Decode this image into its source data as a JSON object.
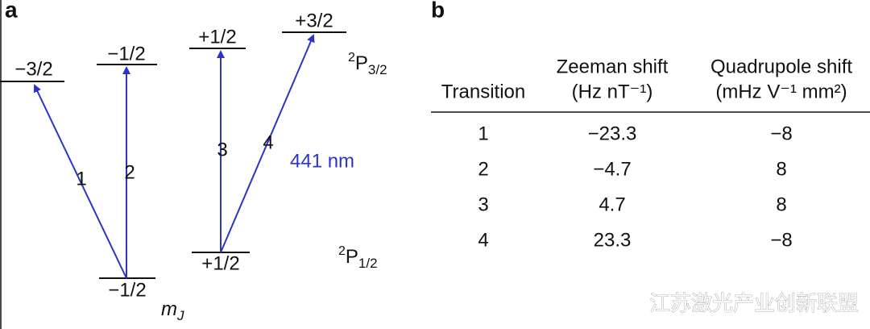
{
  "panel_a": {
    "label": "a",
    "upper_levels": [
      "−3/2",
      "−1/2",
      "+1/2",
      "+3/2"
    ],
    "lower_levels": [
      "−1/2",
      "+1/2"
    ],
    "transitions": [
      "1",
      "2",
      "3",
      "4"
    ],
    "wavelength": "441 nm",
    "upper_term": {
      "superscript": "2",
      "letter": "P",
      "subscript": "3/2"
    },
    "lower_term": {
      "superscript": "2",
      "letter": "P",
      "subscript": "1/2"
    },
    "quantum_number": {
      "letter": "m",
      "subscript": "J"
    }
  },
  "panel_b": {
    "label": "b",
    "table": {
      "header": [
        [
          "",
          "Transition"
        ],
        [
          "Zeeman shift",
          "(Hz nT⁻¹)"
        ],
        [
          "Quadrupole shift",
          "(mHz V⁻¹ mm²)"
        ]
      ],
      "rows": [
        [
          "1",
          "−23.3",
          "−8"
        ],
        [
          "2",
          "−4.7",
          "8"
        ],
        [
          "3",
          "4.7",
          "8"
        ],
        [
          "4",
          "23.3",
          "−8"
        ]
      ]
    }
  },
  "watermark": "江苏激光产业创新联盟"
}
